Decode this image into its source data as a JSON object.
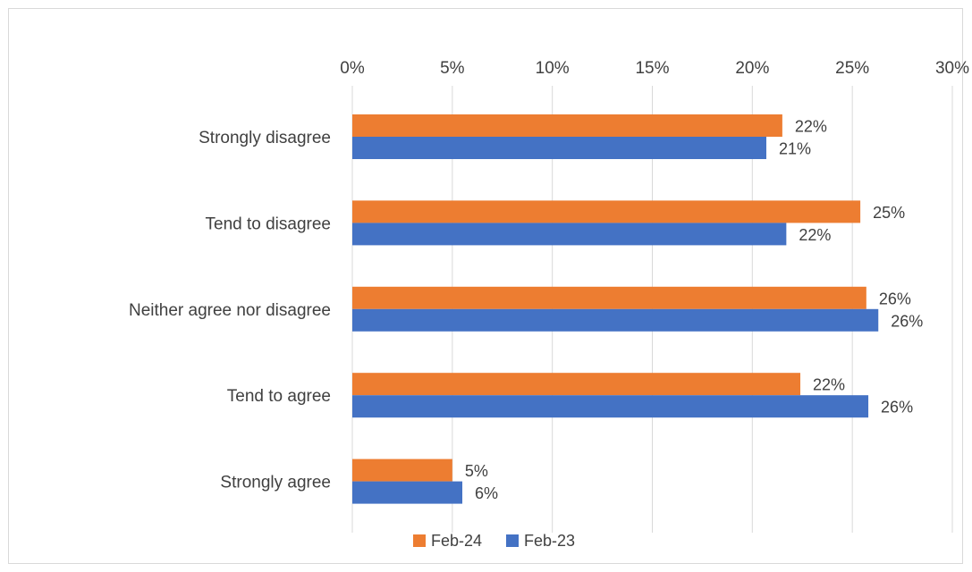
{
  "chart_data": {
    "type": "bar",
    "orientation": "horizontal",
    "categories": [
      "Strongly disagree",
      "Tend to disagree",
      "Neither agree nor disagree",
      "Tend to agree",
      "Strongly agree"
    ],
    "series": [
      {
        "name": "Feb-24",
        "color": "#ED7D31",
        "values": [
          21.5,
          25.4,
          25.7,
          22.4,
          5.0
        ],
        "labels": [
          "22%",
          "25%",
          "26%",
          "22%",
          "5%"
        ]
      },
      {
        "name": "Feb-23",
        "color": "#4472C4",
        "values": [
          20.7,
          21.7,
          26.3,
          25.8,
          5.5
        ],
        "labels": [
          "21%",
          "22%",
          "26%",
          "26%",
          "6%"
        ]
      }
    ],
    "xlim": [
      0,
      30
    ],
    "xticks": [
      0,
      5,
      10,
      15,
      20,
      25,
      30
    ],
    "xtick_labels": [
      "0%",
      "5%",
      "10%",
      "15%",
      "20%",
      "25%",
      "30%"
    ],
    "x_axis_position": "top",
    "grid": true,
    "grid_color": "#d9d9d9",
    "legend_position": "bottom"
  }
}
